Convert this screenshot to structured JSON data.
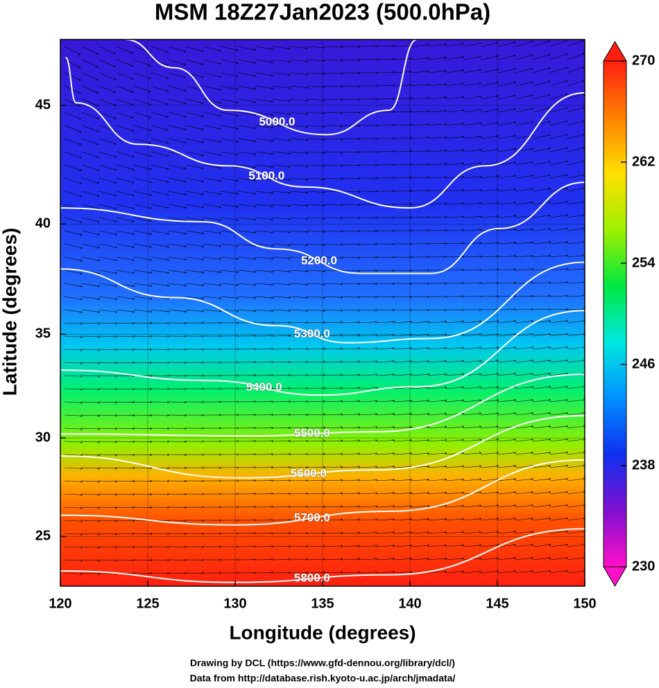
{
  "chart_data": {
    "type": "contour",
    "title": "MSM 18Z27Jan2023 (500.0hPa)",
    "x_label": "Longitude (degrees)",
    "y_label": "Latitude  (degrees)",
    "projection": "mercator",
    "xlim": [
      120,
      150
    ],
    "ylim": [
      22.4,
      47.6
    ],
    "xticks": [
      120,
      125,
      130,
      135,
      140,
      145,
      150
    ],
    "yticks": [
      25,
      30,
      35,
      40,
      45
    ],
    "grid": true,
    "contours": [
      {
        "level": {
          "value": 5000,
          "label": "5000.0"
        },
        "lon": [
          123.7,
          126.5,
          129.6,
          135.2,
          138.8,
          140.4
        ],
        "lat": [
          47.6,
          46.5,
          44.8,
          43.8,
          44.8,
          47.6
        ]
      },
      {
        "level": {
          "value": 5100,
          "label": "5100.0"
        },
        "lon": [
          120.3,
          120.9,
          124.5,
          129.6,
          134.0,
          140.0,
          144.3,
          150.0
        ],
        "lat": [
          46.9,
          45.1,
          43.4,
          42.5,
          41.6,
          40.7,
          42.5,
          45.5
        ]
      },
      {
        "level": {
          "value": 5200,
          "label": "5200.0"
        },
        "lon": [
          120.0,
          128.1,
          132.4,
          137.2,
          141.2,
          145.1,
          150.0
        ],
        "lat": [
          40.7,
          40.1,
          38.9,
          37.8,
          37.8,
          39.8,
          41.8
        ]
      },
      {
        "level": {
          "value": 5300,
          "label": "5300.0"
        },
        "lon": [
          120.0,
          126.5,
          132.4,
          136.4,
          141.2,
          150.0
        ],
        "lat": [
          38.0,
          36.7,
          35.4,
          34.6,
          34.8,
          38.3
        ]
      },
      {
        "level": {
          "value": 5400,
          "label": "5400.0"
        },
        "lon": [
          120.0,
          128.5,
          134.8,
          140.4,
          150.0
        ],
        "lat": [
          33.3,
          32.8,
          32.1,
          32.5,
          36.1
        ]
      },
      {
        "level": {
          "value": 5500,
          "label": "5500.0"
        },
        "lon": [
          120.0,
          130.8,
          138.0,
          150.0
        ],
        "lat": [
          30.2,
          30.1,
          30.3,
          33.1
        ]
      },
      {
        "level": {
          "value": 5600,
          "label": "5600.0"
        },
        "lon": [
          120.0,
          130.4,
          138.0,
          150.0
        ],
        "lat": [
          29.1,
          28.0,
          28.4,
          31.1
        ]
      },
      {
        "level": {
          "value": 5700,
          "label": "5700.0"
        },
        "lon": [
          120.0,
          130.0,
          138.8,
          150.0
        ],
        "lat": [
          26.1,
          25.6,
          26.3,
          28.9
        ]
      },
      {
        "level": {
          "value": 5800,
          "label": "5800.0"
        },
        "lon": [
          120.0,
          130.0,
          138.8,
          150.0
        ],
        "lat": [
          23.2,
          22.6,
          23.0,
          25.4
        ]
      }
    ],
    "colorbar": {
      "lim": [
        230,
        270
      ],
      "ticks": [
        230,
        238,
        246,
        254,
        262,
        270
      ],
      "colormap": [
        "#ff10c8",
        "#8010d0",
        "#1030f0",
        "#0090ff",
        "#00e8e0",
        "#00e840",
        "#a0f000",
        "#ffe000",
        "#ff8000",
        "#ff2010"
      ]
    },
    "credits": [
      "Drawing by DCL (https://www.gfd-dennou.org/library/dcl/)",
      "Data from http://database.rish.kyoto-u.ac.jp/arch/jmadata/"
    ]
  }
}
